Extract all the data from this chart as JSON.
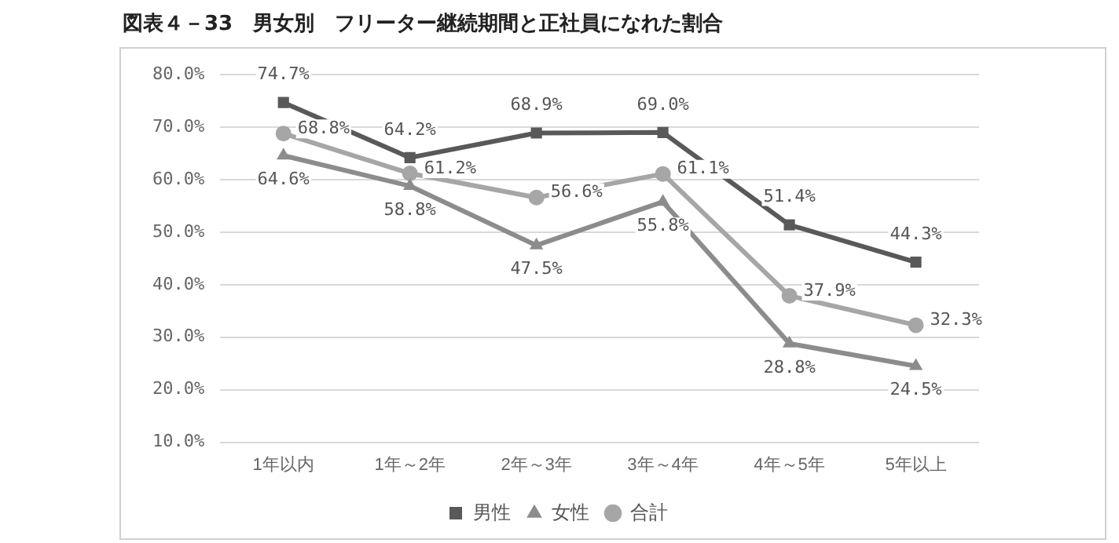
{
  "chart_data": {
    "type": "line",
    "title": "図表４－33　男女別　フリーター継続期間と正社員になれた割合",
    "categories": [
      "1年以内",
      "1年～2年",
      "2年～3年",
      "3年～4年",
      "4年～5年",
      "5年以上"
    ],
    "series": [
      {
        "name": "男性",
        "color": "#595959",
        "marker": "square",
        "values": [
          74.7,
          64.2,
          68.9,
          69.0,
          51.4,
          44.3
        ],
        "value_labels": [
          "74.7%",
          "64.2%",
          "68.9%",
          "69.0%",
          "51.4%",
          "44.3%"
        ]
      },
      {
        "name": "女性",
        "color": "#8c8c8c",
        "marker": "triangle",
        "values": [
          64.6,
          58.8,
          47.5,
          55.8,
          28.8,
          24.5
        ],
        "value_labels": [
          "64.6%",
          "58.8%",
          "47.5%",
          "55.8%",
          "28.8%",
          "24.5%"
        ]
      },
      {
        "name": "合計",
        "color": "#a6a6a6",
        "marker": "circle",
        "values": [
          68.8,
          61.2,
          56.6,
          61.1,
          37.9,
          32.3
        ],
        "value_labels": [
          "68.8%",
          "61.2%",
          "56.6%",
          "61.1%",
          "37.9%",
          "32.3%"
        ]
      }
    ],
    "ylim": [
      10,
      80
    ],
    "yticks": [
      {
        "value": 10,
        "label": "10.0%"
      },
      {
        "value": 20,
        "label": "20.0%"
      },
      {
        "value": 30,
        "label": "30.0%"
      },
      {
        "value": 40,
        "label": "40.0%"
      },
      {
        "value": 50,
        "label": "50.0%"
      },
      {
        "value": 60,
        "label": "60.0%"
      },
      {
        "value": 70,
        "label": "70.0%"
      },
      {
        "value": 80,
        "label": "80.0%"
      }
    ],
    "grid": "y",
    "legend": "bottom",
    "line_style": "solid"
  }
}
